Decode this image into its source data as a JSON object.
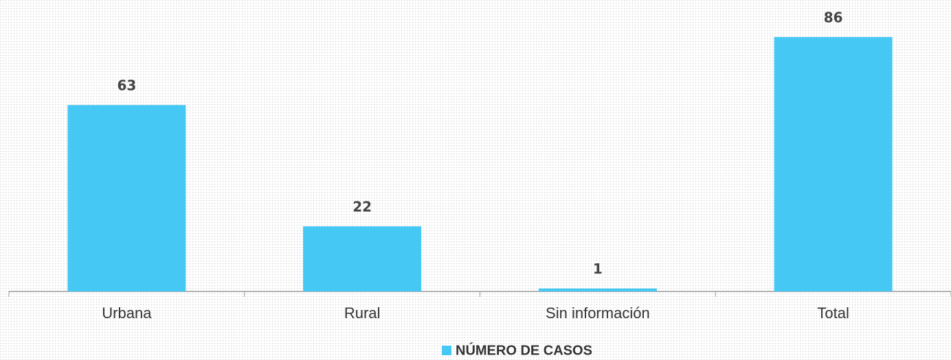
{
  "chart_data": {
    "type": "bar",
    "categories": [
      "Urbana",
      "Rural",
      "Sin información",
      "Total"
    ],
    "series": [
      {
        "name": "NÚMERO DE CASOS",
        "color": "#45c8f4",
        "values": [
          63,
          22,
          1,
          86
        ]
      }
    ]
  }
}
